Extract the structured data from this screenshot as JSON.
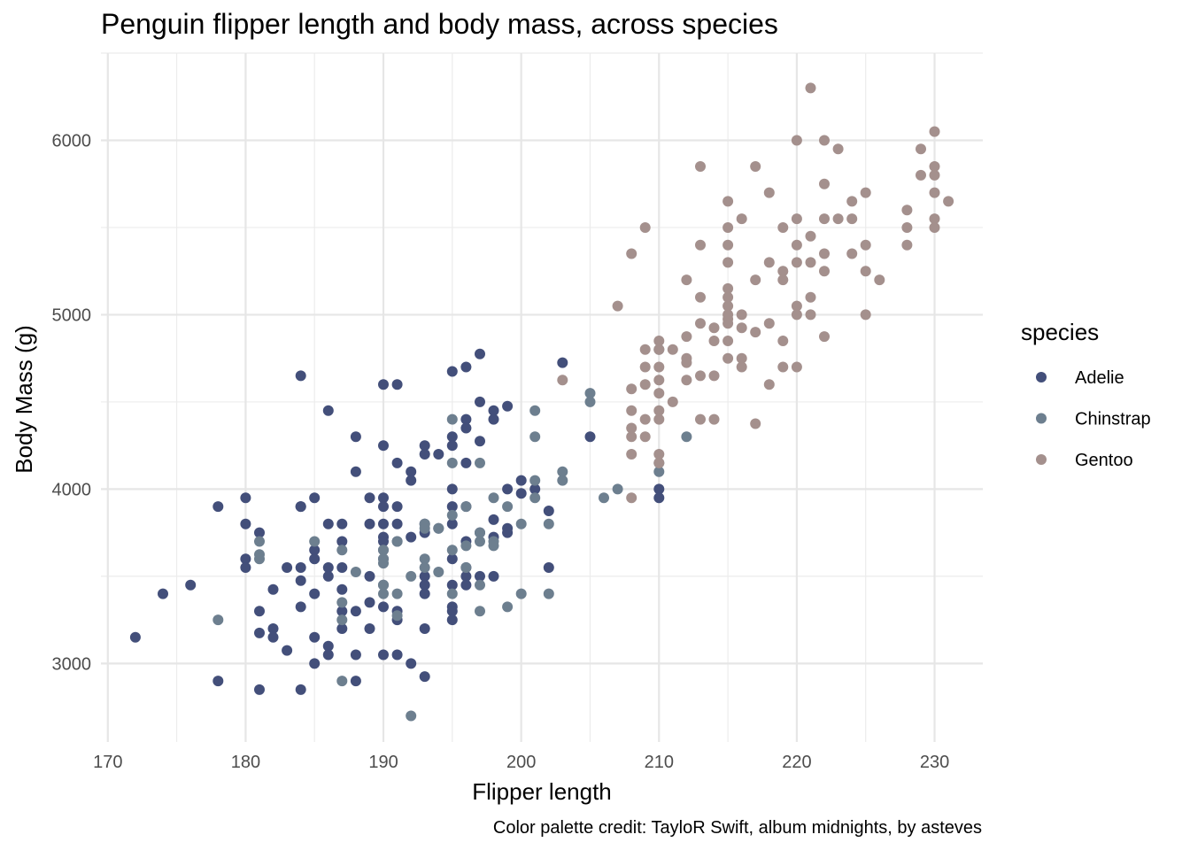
{
  "chart_data": {
    "type": "scatter",
    "title": "Penguin flipper length and body mass, across species",
    "xlabel": "Flipper length",
    "ylabel": "Body Mass (g)",
    "caption": "Color palette credit: TayloR Swift, album midnights, by asteves",
    "xlim": [
      169.5,
      233.5
    ],
    "ylim": [
      2550,
      6500
    ],
    "x_ticks": [
      170,
      180,
      190,
      200,
      210,
      220,
      230
    ],
    "y_ticks": [
      3000,
      4000,
      5000,
      6000
    ],
    "grid": true,
    "legend": {
      "title": "species",
      "placement": "right"
    },
    "series": [
      {
        "name": "Adelie",
        "color": "#434F7A",
        "points": [
          [
            172,
            3150
          ],
          [
            174,
            3400
          ],
          [
            176,
            3450
          ],
          [
            178,
            3900
          ],
          [
            178,
            2900
          ],
          [
            180,
            3950
          ],
          [
            180,
            3800
          ],
          [
            180,
            3600
          ],
          [
            180,
            3550
          ],
          [
            181,
            3750
          ],
          [
            181,
            3300
          ],
          [
            181,
            3175
          ],
          [
            181,
            2850
          ],
          [
            182,
            3425
          ],
          [
            182,
            3200
          ],
          [
            182,
            3150
          ],
          [
            183,
            3075
          ],
          [
            183,
            3550
          ],
          [
            184,
            4650
          ],
          [
            184,
            3900
          ],
          [
            184,
            3900
          ],
          [
            184,
            3550
          ],
          [
            184,
            3475
          ],
          [
            184,
            3325
          ],
          [
            184,
            2850
          ],
          [
            185,
            3950
          ],
          [
            185,
            3650
          ],
          [
            185,
            3600
          ],
          [
            185,
            3400
          ],
          [
            185,
            3150
          ],
          [
            185,
            3000
          ],
          [
            186,
            4450
          ],
          [
            186,
            3800
          ],
          [
            186,
            3550
          ],
          [
            186,
            3500
          ],
          [
            186,
            3100
          ],
          [
            186,
            3050
          ],
          [
            187,
            3800
          ],
          [
            187,
            3700
          ],
          [
            187,
            3550
          ],
          [
            187,
            3425
          ],
          [
            187,
            3300
          ],
          [
            187,
            3200
          ],
          [
            188,
            4300
          ],
          [
            188,
            4100
          ],
          [
            188,
            3300
          ],
          [
            188,
            3050
          ],
          [
            188,
            2900
          ],
          [
            189,
            3950
          ],
          [
            189,
            3800
          ],
          [
            189,
            3500
          ],
          [
            189,
            3350
          ],
          [
            189,
            3200
          ],
          [
            190,
            4600
          ],
          [
            190,
            4250
          ],
          [
            190,
            3950
          ],
          [
            190,
            3900
          ],
          [
            190,
            3800
          ],
          [
            190,
            3725
          ],
          [
            190,
            3700
          ],
          [
            190,
            3650
          ],
          [
            190,
            3600
          ],
          [
            190,
            3450
          ],
          [
            190,
            3325
          ],
          [
            190,
            3050
          ],
          [
            191,
            4600
          ],
          [
            191,
            4150
          ],
          [
            191,
            3900
          ],
          [
            191,
            3800
          ],
          [
            191,
            3700
          ],
          [
            191,
            3300
          ],
          [
            191,
            3250
          ],
          [
            191,
            3050
          ],
          [
            192,
            4100
          ],
          [
            192,
            4050
          ],
          [
            192,
            3725
          ],
          [
            192,
            3000
          ],
          [
            193,
            4250
          ],
          [
            193,
            4200
          ],
          [
            193,
            3800
          ],
          [
            193,
            3750
          ],
          [
            193,
            3500
          ],
          [
            193,
            3450
          ],
          [
            193,
            3400
          ],
          [
            193,
            3200
          ],
          [
            193,
            2925
          ],
          [
            194,
            4200
          ],
          [
            194,
            3775
          ],
          [
            195,
            4675
          ],
          [
            195,
            4300
          ],
          [
            195,
            4250
          ],
          [
            195,
            4000
          ],
          [
            195,
            3900
          ],
          [
            195,
            3800
          ],
          [
            195,
            3600
          ],
          [
            195,
            3450
          ],
          [
            195,
            3325
          ],
          [
            195,
            3300
          ],
          [
            195,
            3250
          ],
          [
            196,
            4700
          ],
          [
            196,
            4400
          ],
          [
            196,
            4350
          ],
          [
            196,
            4150
          ],
          [
            196,
            3900
          ],
          [
            196,
            3700
          ],
          [
            196,
            3550
          ],
          [
            196,
            3500
          ],
          [
            196,
            3450
          ],
          [
            197,
            4775
          ],
          [
            197,
            4500
          ],
          [
            197,
            4275
          ],
          [
            197,
            3750
          ],
          [
            197,
            3500
          ],
          [
            198,
            4450
          ],
          [
            198,
            4400
          ],
          [
            198,
            3825
          ],
          [
            198,
            3725
          ],
          [
            198,
            3500
          ],
          [
            199,
            4475
          ],
          [
            199,
            4000
          ],
          [
            199,
            3775
          ],
          [
            199,
            3750
          ],
          [
            200,
            4050
          ],
          [
            200,
            3975
          ],
          [
            201,
            4000
          ],
          [
            202,
            3875
          ],
          [
            202,
            3550
          ],
          [
            203,
            4725
          ],
          [
            205,
            4300
          ],
          [
            210,
            4000
          ],
          [
            210,
            3950
          ]
        ]
      },
      {
        "name": "Chinstrap",
        "color": "#6D7F8F",
        "points": [
          [
            178,
            3250
          ],
          [
            181,
            3700
          ],
          [
            181,
            3625
          ],
          [
            181,
            3600
          ],
          [
            185,
            3700
          ],
          [
            187,
            3650
          ],
          [
            187,
            3350
          ],
          [
            187,
            3250
          ],
          [
            187,
            2900
          ],
          [
            188,
            3525
          ],
          [
            190,
            3650
          ],
          [
            190,
            3600
          ],
          [
            190,
            3575
          ],
          [
            190,
            3450
          ],
          [
            190,
            3400
          ],
          [
            191,
            3700
          ],
          [
            191,
            3400
          ],
          [
            191,
            3275
          ],
          [
            192,
            3500
          ],
          [
            192,
            2700
          ],
          [
            193,
            3800
          ],
          [
            193,
            3775
          ],
          [
            193,
            3600
          ],
          [
            193,
            3550
          ],
          [
            194,
            3775
          ],
          [
            194,
            3525
          ],
          [
            195,
            4400
          ],
          [
            195,
            4150
          ],
          [
            195,
            3850
          ],
          [
            195,
            3650
          ],
          [
            195,
            3400
          ],
          [
            196,
            3900
          ],
          [
            196,
            3675
          ],
          [
            196,
            3550
          ],
          [
            197,
            4150
          ],
          [
            197,
            3750
          ],
          [
            197,
            3700
          ],
          [
            197,
            3450
          ],
          [
            197,
            3300
          ],
          [
            198,
            3950
          ],
          [
            198,
            3700
          ],
          [
            198,
            3675
          ],
          [
            199,
            3900
          ],
          [
            199,
            3325
          ],
          [
            200,
            3800
          ],
          [
            200,
            3400
          ],
          [
            201,
            4450
          ],
          [
            201,
            4300
          ],
          [
            201,
            4050
          ],
          [
            201,
            3950
          ],
          [
            202,
            3800
          ],
          [
            202,
            3400
          ],
          [
            203,
            4100
          ],
          [
            203,
            4050
          ],
          [
            205,
            4550
          ],
          [
            205,
            4500
          ],
          [
            206,
            3950
          ],
          [
            207,
            4000
          ],
          [
            210,
            4800
          ],
          [
            210,
            4150
          ],
          [
            210,
            4100
          ],
          [
            212,
            4300
          ]
        ]
      },
      {
        "name": "Gentoo",
        "color": "#A4908D",
        "points": [
          [
            203,
            4625
          ],
          [
            207,
            5050
          ],
          [
            208,
            5350
          ],
          [
            208,
            4575
          ],
          [
            208,
            4450
          ],
          [
            208,
            4350
          ],
          [
            208,
            4300
          ],
          [
            208,
            4200
          ],
          [
            208,
            3950
          ],
          [
            209,
            5500
          ],
          [
            209,
            4800
          ],
          [
            209,
            4700
          ],
          [
            209,
            4600
          ],
          [
            209,
            4400
          ],
          [
            209,
            4300
          ],
          [
            210,
            4850
          ],
          [
            210,
            4800
          ],
          [
            210,
            4700
          ],
          [
            210,
            4625
          ],
          [
            210,
            4550
          ],
          [
            210,
            4450
          ],
          [
            210,
            4400
          ],
          [
            210,
            4200
          ],
          [
            210,
            4150
          ],
          [
            211,
            4800
          ],
          [
            211,
            4500
          ],
          [
            212,
            5200
          ],
          [
            212,
            4875
          ],
          [
            212,
            4750
          ],
          [
            212,
            4725
          ],
          [
            212,
            4625
          ],
          [
            213,
            5850
          ],
          [
            213,
            5400
          ],
          [
            213,
            5100
          ],
          [
            213,
            4950
          ],
          [
            213,
            4650
          ],
          [
            213,
            4400
          ],
          [
            214,
            4925
          ],
          [
            214,
            4850
          ],
          [
            214,
            4650
          ],
          [
            214,
            4400
          ],
          [
            215,
            5650
          ],
          [
            215,
            5500
          ],
          [
            215,
            5400
          ],
          [
            215,
            5300
          ],
          [
            215,
            5150
          ],
          [
            215,
            5100
          ],
          [
            215,
            5050
          ],
          [
            215,
            5000
          ],
          [
            215,
            4975
          ],
          [
            215,
            4950
          ],
          [
            215,
            4850
          ],
          [
            215,
            4750
          ],
          [
            216,
            5550
          ],
          [
            216,
            5000
          ],
          [
            216,
            4925
          ],
          [
            216,
            4750
          ],
          [
            216,
            4700
          ],
          [
            217,
            5850
          ],
          [
            217,
            5200
          ],
          [
            217,
            4900
          ],
          [
            217,
            4375
          ],
          [
            218,
            5700
          ],
          [
            218,
            5300
          ],
          [
            218,
            4950
          ],
          [
            218,
            4600
          ],
          [
            219,
            5500
          ],
          [
            219,
            5250
          ],
          [
            219,
            5200
          ],
          [
            219,
            4850
          ],
          [
            219,
            4700
          ],
          [
            220,
            6000
          ],
          [
            220,
            5550
          ],
          [
            220,
            5400
          ],
          [
            220,
            5300
          ],
          [
            220,
            5050
          ],
          [
            220,
            5000
          ],
          [
            220,
            4700
          ],
          [
            221,
            6300
          ],
          [
            221,
            5450
          ],
          [
            221,
            5300
          ],
          [
            221,
            5100
          ],
          [
            221,
            5000
          ],
          [
            222,
            6000
          ],
          [
            222,
            5750
          ],
          [
            222,
            5550
          ],
          [
            222,
            5350
          ],
          [
            222,
            5250
          ],
          [
            222,
            4875
          ],
          [
            223,
            5950
          ],
          [
            223,
            5550
          ],
          [
            224,
            5650
          ],
          [
            224,
            5550
          ],
          [
            224,
            5350
          ],
          [
            225,
            5700
          ],
          [
            225,
            5400
          ],
          [
            225,
            5250
          ],
          [
            225,
            5000
          ],
          [
            226,
            5200
          ],
          [
            228,
            5600
          ],
          [
            228,
            5500
          ],
          [
            228,
            5400
          ],
          [
            229,
            5950
          ],
          [
            229,
            5800
          ],
          [
            230,
            6050
          ],
          [
            230,
            5850
          ],
          [
            230,
            5800
          ],
          [
            230,
            5700
          ],
          [
            230,
            5550
          ],
          [
            230,
            5500
          ],
          [
            231,
            5650
          ]
        ]
      }
    ]
  }
}
